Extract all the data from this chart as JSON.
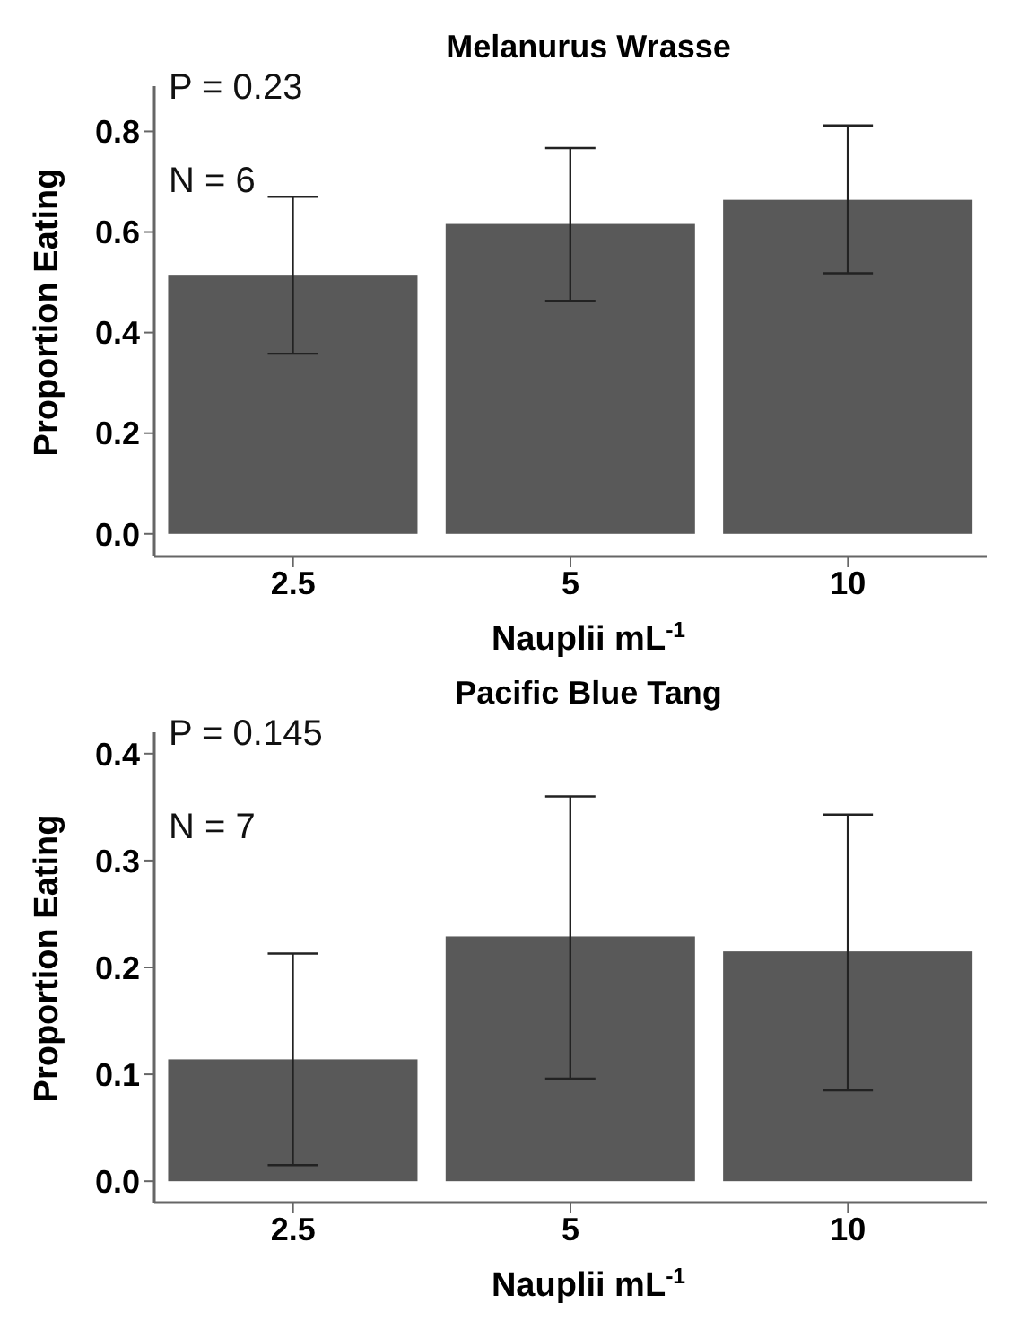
{
  "chart_data": [
    {
      "type": "bar",
      "title": "Melanurus Wrasse",
      "xlabel": "Nauplii mL$^{-1}$",
      "ylabel": "Proportion Eating",
      "categories": [
        "2.5",
        "5",
        "10"
      ],
      "values": [
        0.515,
        0.616,
        0.664
      ],
      "errors": [
        [
          0.358,
          0.67
        ],
        [
          0.463,
          0.767
        ],
        [
          0.518,
          0.812
        ]
      ],
      "color": "#595959",
      "ylim": [
        -0.045,
        0.89
      ],
      "yticks": [
        {
          "value": 0,
          "label": "0.0"
        },
        0.2,
        0.4,
        0.6,
        0.8
      ],
      "grid": false,
      "legend": false,
      "annotations": [
        "P = 0.23",
        "N = 6"
      ]
    },
    {
      "type": "bar",
      "title": "Pacific Blue Tang",
      "xlabel": "Nauplii mL$^{-1}$",
      "ylabel": "Proportion Eating",
      "categories": [
        "2.5",
        "5",
        "10"
      ],
      "values": [
        0.114,
        0.229,
        0.215
      ],
      "errors": [
        [
          0.015,
          0.213
        ],
        [
          0.096,
          0.36
        ],
        [
          0.085,
          0.343
        ]
      ],
      "color": "#595959",
      "ylim": [
        -0.02,
        0.42
      ],
      "yticks": [
        {
          "value": 0,
          "label": "0.0"
        },
        0.1,
        0.2,
        0.3,
        0.4
      ],
      "grid": false,
      "legend": false,
      "annotations": [
        "P = 0.145",
        "N = 7"
      ]
    }
  ]
}
